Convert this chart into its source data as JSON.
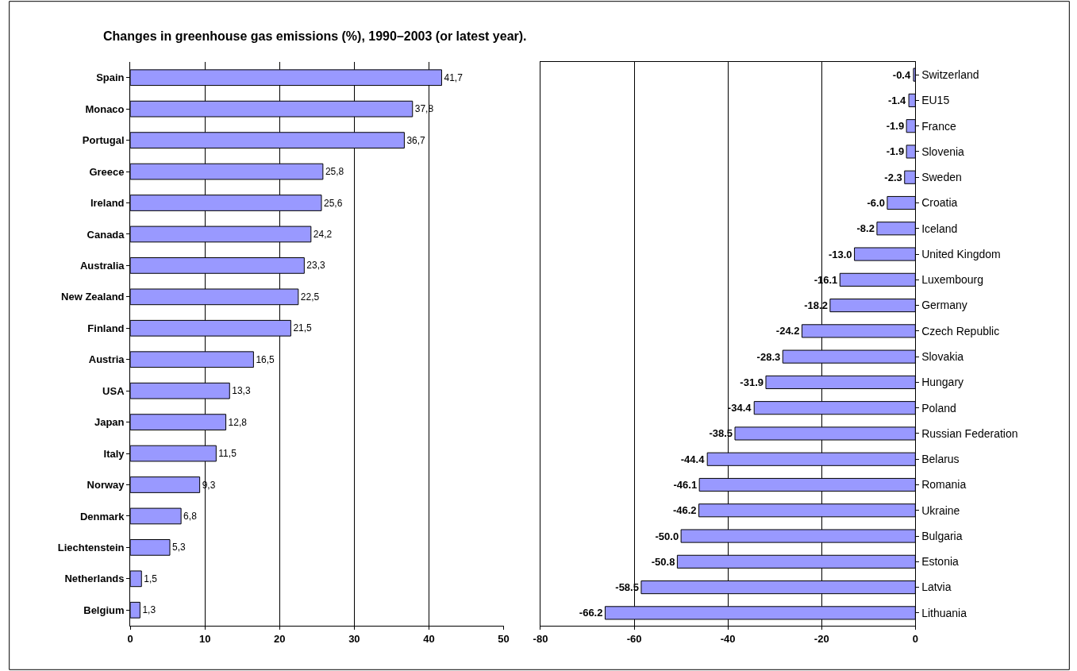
{
  "chart_data": [
    {
      "type": "bar",
      "orientation": "horizontal",
      "title": "Changes in greenhouse gas emissions (%), 1990–2003 (or latest year).",
      "categories": [
        "Spain",
        "Monaco",
        "Portugal",
        "Greece",
        "Ireland",
        "Canada",
        "Australia",
        "New Zealand",
        "Finland",
        "Austria",
        "USA",
        "Japan",
        "Italy",
        "Norway",
        "Denmark",
        "Liechtenstein",
        "Netherlands",
        "Belgium"
      ],
      "values": [
        41.7,
        37.8,
        36.7,
        25.8,
        25.6,
        24.2,
        23.3,
        22.5,
        21.5,
        16.5,
        13.3,
        12.8,
        11.5,
        9.3,
        6.8,
        5.3,
        1.5,
        1.3
      ],
      "value_labels": [
        "41,7",
        "37,8",
        "36,7",
        "25,8",
        "25,6",
        "24,2",
        "23,3",
        "22,5",
        "21,5",
        "16,5",
        "13,3",
        "12,8",
        "11,5",
        "9,3",
        "6,8",
        "5,3",
        "1,5",
        "1,3"
      ],
      "color": "#9999ff",
      "xlim": [
        0,
        50
      ],
      "xticks": [
        0,
        10,
        20,
        30,
        40,
        50
      ],
      "grid": "x"
    },
    {
      "type": "bar",
      "orientation": "horizontal",
      "categories": [
        "Switzerland",
        "EU15",
        "France",
        "Slovenia",
        "Sweden",
        "Croatia",
        "Iceland",
        "United Kingdom",
        "Luxembourg",
        "Germany",
        "Czech Republic",
        "Slovakia",
        "Hungary",
        "Poland",
        "Russian Federation",
        "Belarus",
        "Romania",
        "Ukraine",
        "Bulgaria",
        "Estonia",
        "Latvia",
        "Lithuania"
      ],
      "values": [
        -0.4,
        -1.4,
        -1.9,
        -1.9,
        -2.3,
        -6.0,
        -8.2,
        -13.0,
        -16.1,
        -18.2,
        -24.2,
        -28.3,
        -31.9,
        -34.4,
        -38.5,
        -44.4,
        -46.1,
        -46.2,
        -50.0,
        -50.8,
        -58.5,
        -66.2
      ],
      "value_labels": [
        "-0.4",
        "-1.4",
        "-1.9",
        "-1.9",
        "-2.3",
        "-6.0",
        "-8.2",
        "-13.0",
        "-16.1",
        "-18.2",
        "-24.2",
        "-28.3",
        "-31.9",
        "-34.4",
        "-38.5",
        "-44.4",
        "-46.1",
        "-46.2",
        "-50.0",
        "-50.8",
        "-58.5",
        "-66.2"
      ],
      "color": "#9999ff",
      "xlim": [
        -80,
        0
      ],
      "xticks": [
        -80,
        -60,
        -40,
        -20,
        0
      ],
      "grid": "x"
    }
  ]
}
